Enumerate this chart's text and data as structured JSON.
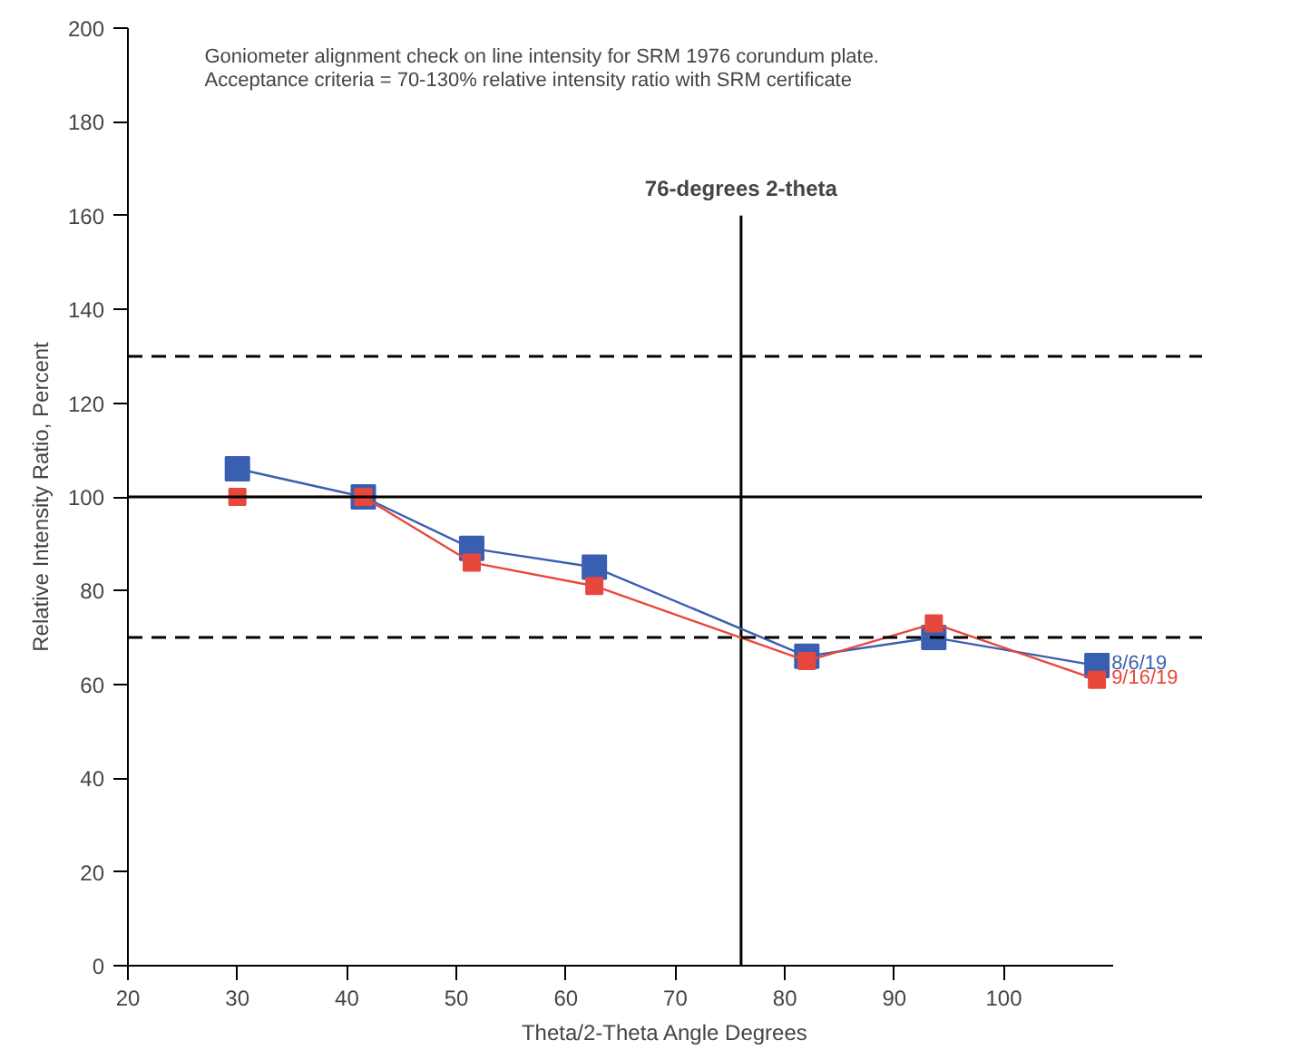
{
  "chart_data": {
    "type": "line",
    "xlabel": "Theta/2-Theta Angle Degrees",
    "ylabel": "Relative Intensity Ratio, Percent",
    "x": [
      30,
      41.5,
      51.4,
      62.6,
      82,
      93.6,
      108.5
    ],
    "series": [
      {
        "name": "8/6/19",
        "color": "#3a5fb0",
        "values": [
          106,
          100,
          89,
          85,
          66,
          70,
          64
        ]
      },
      {
        "name": "9/16/19",
        "color": "#e8483c",
        "values": [
          100,
          100,
          86,
          81,
          65,
          73,
          61
        ]
      }
    ],
    "xlim": [
      20,
      110
    ],
    "xticks": [
      20,
      30,
      40,
      50,
      60,
      70,
      80,
      90,
      100
    ],
    "ylim": [
      0,
      200
    ],
    "yticks": [
      0,
      20,
      40,
      60,
      80,
      100,
      120,
      140,
      160,
      180,
      200
    ],
    "ref_lines": [
      {
        "axis": "y",
        "value": 130,
        "label": null,
        "line_style": "dashed",
        "color": "#000000"
      },
      {
        "axis": "y",
        "value": 100,
        "label": null,
        "line_style": "solid",
        "color": "#000000"
      },
      {
        "axis": "y",
        "value": 70,
        "label": null,
        "line_style": "dashed",
        "color": "#000000"
      },
      {
        "axis": "x",
        "value": 76,
        "label": "76-degrees 2-theta",
        "line_style": "solid",
        "color": "#000000"
      }
    ],
    "annotations": [
      "Goniometer alignment check on line intensity for SRM 1976 corundum plate.",
      "Acceptance criteria = 70-130% relative intensity ratio with SRM certificate"
    ],
    "marker": "square",
    "line_style": "solid",
    "grid": false,
    "legend": false
  }
}
